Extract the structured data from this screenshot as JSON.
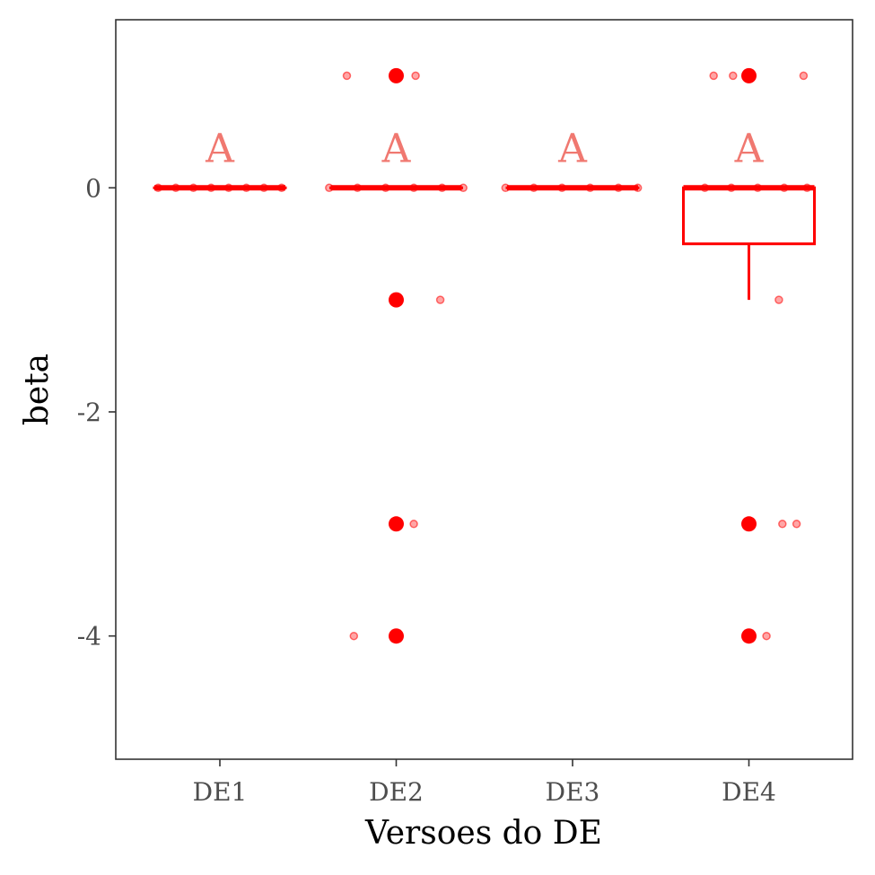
{
  "chart_data": {
    "type": "boxplot",
    "title": "",
    "xlabel": "Versoes do DE",
    "ylabel": "beta",
    "categories": [
      "DE1",
      "DE2",
      "DE3",
      "DE4"
    ],
    "ylim": [
      -5.1,
      1.5
    ],
    "yticks": [
      {
        "value": 0,
        "label": "0"
      },
      {
        "value": -2,
        "label": "-2"
      },
      {
        "value": -4,
        "label": "-4"
      }
    ],
    "grid": false,
    "legend": "none",
    "color": "#ff0000",
    "letter_color": "#f07870",
    "significance_letters": [
      {
        "category": "DE1",
        "label": "A",
        "y": 0.35
      },
      {
        "category": "DE2",
        "label": "A",
        "y": 0.35
      },
      {
        "category": "DE3",
        "label": "A",
        "y": 0.35
      },
      {
        "category": "DE4",
        "label": "A",
        "y": 0.35
      }
    ],
    "boxes": [
      {
        "category": "DE1",
        "q1": 0,
        "median": 0,
        "q3": 0,
        "whisker_low": 0,
        "whisker_high": 0,
        "outliers": []
      },
      {
        "category": "DE2",
        "q1": 0,
        "median": 0,
        "q3": 0,
        "whisker_low": 0,
        "whisker_high": 0,
        "outliers": [
          1,
          -1,
          -3,
          -4
        ]
      },
      {
        "category": "DE3",
        "q1": 0,
        "median": 0,
        "q3": 0,
        "whisker_low": 0,
        "whisker_high": 0,
        "outliers": []
      },
      {
        "category": "DE4",
        "q1": -0.5,
        "median": 0,
        "q3": 0,
        "whisker_low": -1,
        "whisker_high": 0,
        "outliers": [
          1,
          -3,
          -4
        ]
      }
    ],
    "jitter_points": [
      {
        "category": "DE1",
        "y": 0,
        "dx": -0.35
      },
      {
        "category": "DE1",
        "y": 0,
        "dx": -0.25
      },
      {
        "category": "DE1",
        "y": 0,
        "dx": -0.15
      },
      {
        "category": "DE1",
        "y": 0,
        "dx": -0.05
      },
      {
        "category": "DE1",
        "y": 0,
        "dx": 0.05
      },
      {
        "category": "DE1",
        "y": 0,
        "dx": 0.15
      },
      {
        "category": "DE1",
        "y": 0,
        "dx": 0.25
      },
      {
        "category": "DE1",
        "y": 0,
        "dx": 0.35
      },
      {
        "category": "DE2",
        "y": 1,
        "dx": -0.28
      },
      {
        "category": "DE2",
        "y": 1,
        "dx": 0.11
      },
      {
        "category": "DE2",
        "y": 0,
        "dx": -0.38
      },
      {
        "category": "DE2",
        "y": 0,
        "dx": -0.22
      },
      {
        "category": "DE2",
        "y": 0,
        "dx": -0.06
      },
      {
        "category": "DE2",
        "y": 0,
        "dx": 0.1
      },
      {
        "category": "DE2",
        "y": 0,
        "dx": 0.26
      },
      {
        "category": "DE2",
        "y": 0,
        "dx": 0.38
      },
      {
        "category": "DE2",
        "y": -1,
        "dx": 0.25
      },
      {
        "category": "DE2",
        "y": -3,
        "dx": 0.1
      },
      {
        "category": "DE2",
        "y": -4,
        "dx": -0.24
      },
      {
        "category": "DE3",
        "y": 0,
        "dx": -0.38
      },
      {
        "category": "DE3",
        "y": 0,
        "dx": -0.22
      },
      {
        "category": "DE3",
        "y": 0,
        "dx": -0.06
      },
      {
        "category": "DE3",
        "y": 0,
        "dx": 0.1
      },
      {
        "category": "DE3",
        "y": 0,
        "dx": 0.26
      },
      {
        "category": "DE3",
        "y": 0,
        "dx": 0.37
      },
      {
        "category": "DE4",
        "y": 1,
        "dx": -0.2
      },
      {
        "category": "DE4",
        "y": 1,
        "dx": -0.09
      },
      {
        "category": "DE4",
        "y": 1,
        "dx": 0.31
      },
      {
        "category": "DE4",
        "y": 0,
        "dx": -0.25
      },
      {
        "category": "DE4",
        "y": 0,
        "dx": -0.1
      },
      {
        "category": "DE4",
        "y": 0,
        "dx": 0.05
      },
      {
        "category": "DE4",
        "y": 0,
        "dx": 0.2
      },
      {
        "category": "DE4",
        "y": 0,
        "dx": 0.33
      },
      {
        "category": "DE4",
        "y": -1,
        "dx": 0.17
      },
      {
        "category": "DE4",
        "y": -3,
        "dx": 0.19
      },
      {
        "category": "DE4",
        "y": -3,
        "dx": 0.27
      },
      {
        "category": "DE4",
        "y": -4,
        "dx": 0.1
      }
    ]
  }
}
